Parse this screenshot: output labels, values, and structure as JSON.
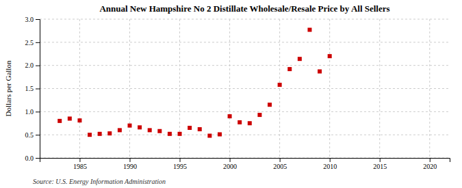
{
  "chart_data": {
    "type": "scatter",
    "title": "Annual New Hampshire No 2 Distillate Wholesale/Resale Price by All Sellers",
    "ylabel": "Dollars per Gallon",
    "annotation": "Source: U.S. Energy Information Administration",
    "x": [
      1983,
      1984,
      1985,
      1986,
      1987,
      1988,
      1989,
      1990,
      1991,
      1992,
      1993,
      1994,
      1995,
      1996,
      1997,
      1998,
      1999,
      2000,
      2001,
      2002,
      2003,
      2004,
      2005,
      2006,
      2007,
      2008,
      2009,
      2010
    ],
    "values": [
      0.8,
      0.85,
      0.81,
      0.5,
      0.52,
      0.53,
      0.6,
      0.7,
      0.66,
      0.6,
      0.58,
      0.52,
      0.52,
      0.65,
      0.62,
      0.48,
      0.51,
      0.9,
      0.77,
      0.75,
      0.93,
      1.15,
      1.58,
      1.92,
      2.14,
      2.77,
      1.87,
      2.2
    ],
    "color": "#cc0000",
    "marker": "square",
    "xlim": [
      1981,
      2022
    ],
    "ylim": [
      0.0,
      3.0
    ],
    "xticks": [
      1985,
      1990,
      1995,
      2000,
      2005,
      2010,
      2015,
      2020
    ],
    "yticks": [
      {
        "value": 0.0,
        "label": "0.0"
      },
      0.5,
      {
        "value": 1.0,
        "label": "1.0"
      },
      1.5,
      {
        "value": 2.0,
        "label": "2.0"
      },
      2.5,
      {
        "value": 3.0,
        "label": "3.0"
      }
    ],
    "grid": true
  }
}
